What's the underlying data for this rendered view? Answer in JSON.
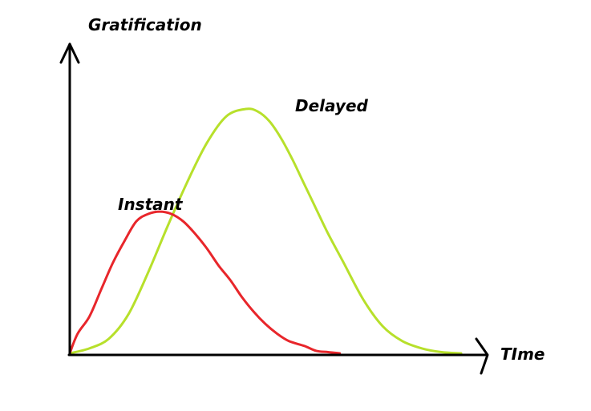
{
  "chart_data": {
    "type": "line",
    "title": "",
    "ylabel": "Gratification",
    "xlabel": "TIme",
    "grid": false,
    "legend": "none",
    "xlim": [
      0,
      100
    ],
    "ylim": [
      0,
      100
    ],
    "series": [
      {
        "name": "Instant",
        "color": "#e8262b",
        "x": [
          0,
          2,
          5,
          8,
          11,
          14,
          17,
          20,
          23,
          26,
          29,
          32,
          35,
          38,
          41,
          44,
          47,
          50,
          53,
          56,
          60,
          63,
          66,
          69
        ],
        "y": [
          0,
          8,
          15,
          26,
          37,
          46,
          54,
          57,
          58,
          57,
          54,
          49,
          43,
          36,
          30,
          23,
          17,
          12,
          8,
          5,
          3,
          1,
          0.5,
          0
        ]
      },
      {
        "name": "Delayed",
        "color": "#b7e02b",
        "x": [
          0,
          5,
          10,
          15,
          20,
          25,
          30,
          35,
          40,
          45,
          48,
          51,
          54,
          57,
          60,
          63,
          66,
          70,
          75,
          80,
          85,
          90,
          95,
          100
        ],
        "y": [
          0,
          2,
          6,
          16,
          33,
          52,
          70,
          86,
          97,
          100,
          99,
          95,
          88,
          79,
          69,
          59,
          49,
          37,
          22,
          11,
          5,
          2,
          0.5,
          0
        ]
      }
    ]
  }
}
